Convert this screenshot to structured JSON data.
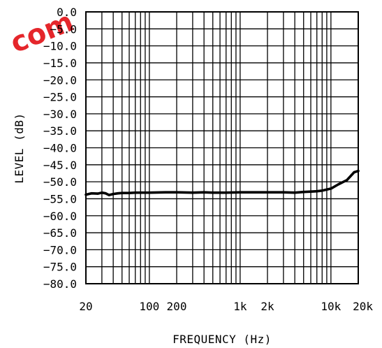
{
  "watermark": "com",
  "chart_data": {
    "type": "line",
    "title": "",
    "xlabel": "FREQUENCY (Hz)",
    "ylabel": "LEVEL (dB)",
    "xscale": "log",
    "xlim": [
      20,
      20000
    ],
    "ylim": [
      -80,
      0
    ],
    "grid": true,
    "x_ticks": [
      {
        "value": 20,
        "label": "20"
      },
      {
        "value": 100,
        "label": "100"
      },
      {
        "value": 200,
        "label": "200"
      },
      {
        "value": 1000,
        "label": "1k"
      },
      {
        "value": 2000,
        "label": "2k"
      },
      {
        "value": 10000,
        "label": "10k"
      },
      {
        "value": 20000,
        "label": "20k"
      }
    ],
    "y_ticks": [
      {
        "value": 0,
        "label": "0.0"
      },
      {
        "value": -5,
        "label": "−5.0"
      },
      {
        "value": -10,
        "label": "−10.0"
      },
      {
        "value": -15,
        "label": "−15.0"
      },
      {
        "value": -20,
        "label": "−20.0"
      },
      {
        "value": -25,
        "label": "−25.0"
      },
      {
        "value": -30,
        "label": "−30.0"
      },
      {
        "value": -35,
        "label": "−35.0"
      },
      {
        "value": -40,
        "label": "−40.0"
      },
      {
        "value": -45,
        "label": "−45.0"
      },
      {
        "value": -50,
        "label": "−50.0"
      },
      {
        "value": -55,
        "label": "−55.0"
      },
      {
        "value": -60,
        "label": "−60.0"
      },
      {
        "value": -65,
        "label": "−65.0"
      },
      {
        "value": -70,
        "label": "−70.0"
      },
      {
        "value": -75,
        "label": "−75.0"
      },
      {
        "value": -80,
        "label": "−80.0"
      }
    ],
    "series": [
      {
        "color": "#000000",
        "x": [
          20,
          23,
          27,
          30,
          33,
          36,
          40,
          45,
          50,
          60,
          70,
          80,
          90,
          100,
          150,
          200,
          300,
          400,
          500,
          700,
          1000,
          1500,
          2000,
          3000,
          4000,
          5000,
          6000,
          7000,
          8000,
          9000,
          10000,
          12000,
          15000,
          18000,
          20000
        ],
        "y": [
          -53.8,
          -53.4,
          -53.5,
          -53.2,
          -53.4,
          -53.9,
          -53.6,
          -53.4,
          -53.3,
          -53.3,
          -53.2,
          -53.2,
          -53.2,
          -53.2,
          -53.1,
          -53.1,
          -53.2,
          -53.1,
          -53.2,
          -53.2,
          -53.1,
          -53.1,
          -53.1,
          -53.1,
          -53.2,
          -53.0,
          -52.9,
          -52.8,
          -52.6,
          -52.3,
          -52.0,
          -50.8,
          -49.5,
          -47.2,
          -46.8
        ]
      }
    ]
  }
}
